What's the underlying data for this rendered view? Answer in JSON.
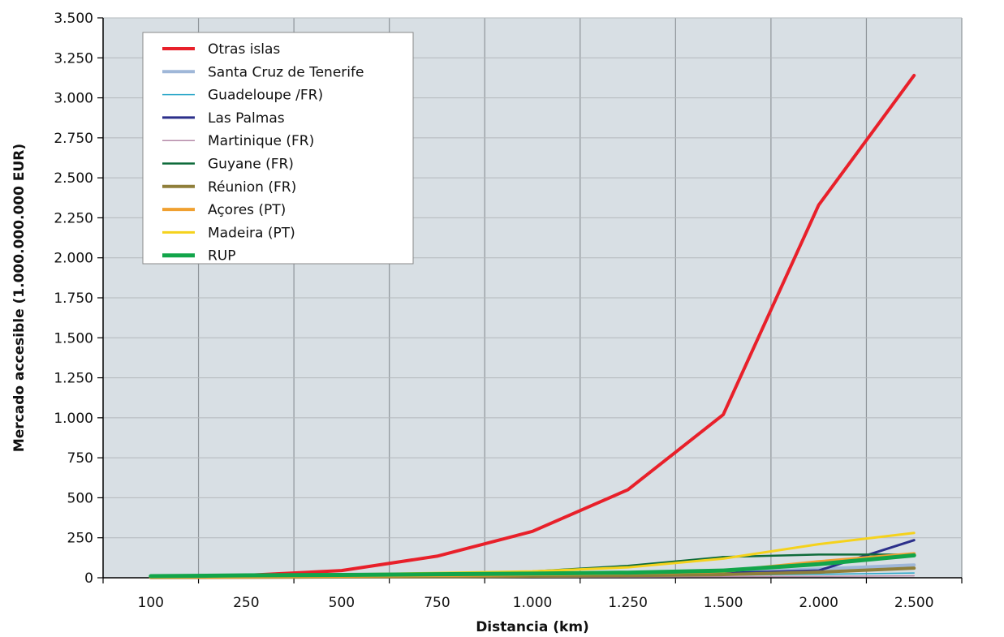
{
  "chart_data": {
    "type": "line",
    "xlabel": "Distancia (km)",
    "ylabel": "Mercado accesible (1.000.000.000 EUR)",
    "categories": [
      "100",
      "250",
      "500",
      "750",
      "1.000",
      "1.250",
      "1.500",
      "2.000",
      "2.500"
    ],
    "ylim": [
      0,
      3500
    ],
    "yticks": [
      0,
      250,
      500,
      750,
      1000,
      1250,
      1500,
      1750,
      2000,
      2250,
      2500,
      2750,
      3000,
      3250,
      3500
    ],
    "ytick_labels": [
      "0",
      "250",
      "500",
      "750",
      "1.000",
      "1.250",
      "1.500",
      "1.750",
      "2.000",
      "2.250",
      "2.500",
      "2.750",
      "3.000",
      "3.250",
      "3.500"
    ],
    "grid": true,
    "legend_position": "top-left",
    "plot_background": "#d8dfe4",
    "series": [
      {
        "name": "Otras islas",
        "color": "#e8202a",
        "width": 4,
        "values": [
          5,
          15,
          45,
          135,
          290,
          550,
          1020,
          2330,
          3140
        ]
      },
      {
        "name": "Santa Cruz de Tenerife",
        "color": "#9fb7d8",
        "width": 4,
        "values": [
          1,
          3,
          6,
          10,
          15,
          22,
          32,
          55,
          80
        ]
      },
      {
        "name": "Guadeloupe /FR)",
        "color": "#2aa7c9",
        "width": 1.5,
        "values": [
          1,
          2,
          4,
          6,
          9,
          12,
          16,
          22,
          30
        ]
      },
      {
        "name": "Las Palmas",
        "color": "#2b2f8a",
        "width": 3,
        "values": [
          2,
          4,
          7,
          10,
          14,
          20,
          30,
          45,
          235
        ]
      },
      {
        "name": "Martinique (FR)",
        "color": "#b58aa8",
        "width": 1.5,
        "values": [
          1,
          1,
          2,
          3,
          4,
          5,
          7,
          9,
          12
        ]
      },
      {
        "name": "Guyane (FR)",
        "color": "#0e6b3a",
        "width": 2.5,
        "values": [
          5,
          12,
          20,
          25,
          40,
          75,
          130,
          145,
          145
        ]
      },
      {
        "name": "Réunion (FR)",
        "color": "#8f7f3a",
        "width": 4,
        "values": [
          2,
          3,
          5,
          7,
          10,
          14,
          20,
          35,
          60
        ]
      },
      {
        "name": "Açores (PT)",
        "color": "#f0a030",
        "width": 4,
        "values": [
          3,
          6,
          10,
          15,
          20,
          28,
          40,
          100,
          150
        ]
      },
      {
        "name": "Madeira (PT)",
        "color": "#f5d21c",
        "width": 3,
        "values": [
          5,
          10,
          20,
          30,
          40,
          65,
          120,
          210,
          280
        ]
      },
      {
        "name": "RUP",
        "color": "#12a54a",
        "width": 5,
        "values": [
          10,
          15,
          18,
          22,
          26,
          32,
          45,
          85,
          140
        ]
      }
    ]
  }
}
